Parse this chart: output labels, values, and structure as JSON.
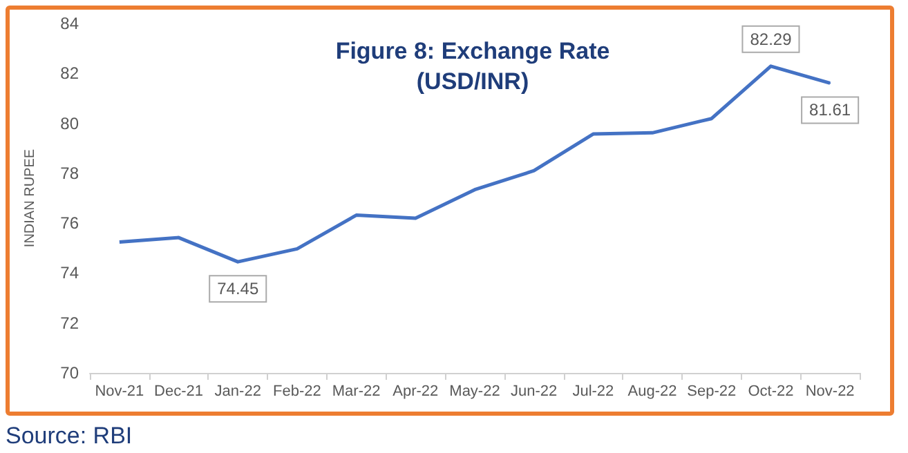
{
  "chart_data": {
    "type": "line",
    "title": "Figure 8: Exchange Rate\n(USD/INR)",
    "ylabel": "INDIAN RUPEE",
    "categories": [
      "Nov-21",
      "Dec-21",
      "Jan-22",
      "Feb-22",
      "Mar-22",
      "Apr-22",
      "May-22",
      "Jun-22",
      "Jul-22",
      "Aug-22",
      "Sep-22",
      "Oct-22",
      "Nov-22"
    ],
    "series": [
      {
        "color": "#4472c4",
        "values": [
          75.24,
          75.42,
          74.45,
          74.97,
          76.32,
          76.2,
          77.34,
          78.1,
          79.57,
          79.62,
          80.19,
          82.29,
          81.61
        ],
        "value_labels": [
          null,
          null,
          "74.45",
          null,
          null,
          null,
          null,
          null,
          null,
          null,
          null,
          "82.29",
          "81.61"
        ]
      }
    ],
    "ylim": [
      70,
      84
    ],
    "yticks": [
      70,
      72,
      74,
      76,
      78,
      80,
      82,
      84
    ],
    "grid": false,
    "marker": "none",
    "line_style": "solid",
    "annotations": [
      "Source: RBI"
    ]
  }
}
